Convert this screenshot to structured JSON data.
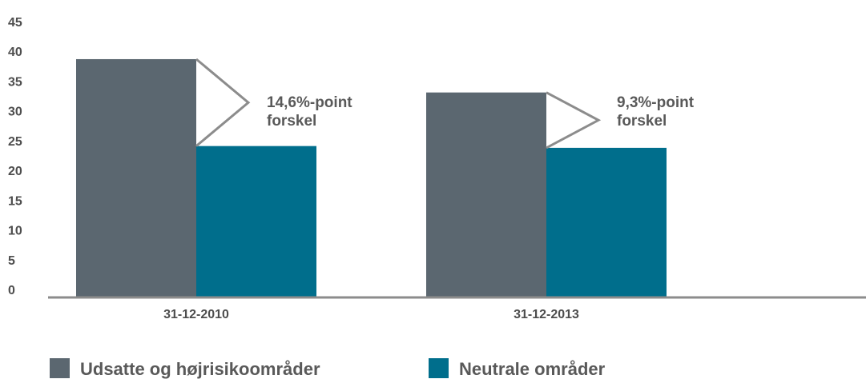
{
  "chart_data": {
    "type": "bar",
    "categories": [
      "31-12-2010",
      "31-12-2013"
    ],
    "series": [
      {
        "name": "Udsatte og højrisikoområder",
        "color": "#5b6770",
        "values": [
          39.9,
          34.3
        ]
      },
      {
        "name": "Neutrale områder",
        "color": "#006e8c",
        "values": [
          25.3,
          25.0
        ]
      }
    ],
    "annotations": [
      [
        "14,6%-point",
        "forskel"
      ],
      [
        "9,3%-point",
        "forskel"
      ]
    ],
    "ylim": [
      0,
      45
    ],
    "yticks": [
      0,
      5,
      10,
      15,
      20,
      25,
      30,
      35,
      40,
      45
    ],
    "grid": false,
    "legend": "bottom"
  }
}
